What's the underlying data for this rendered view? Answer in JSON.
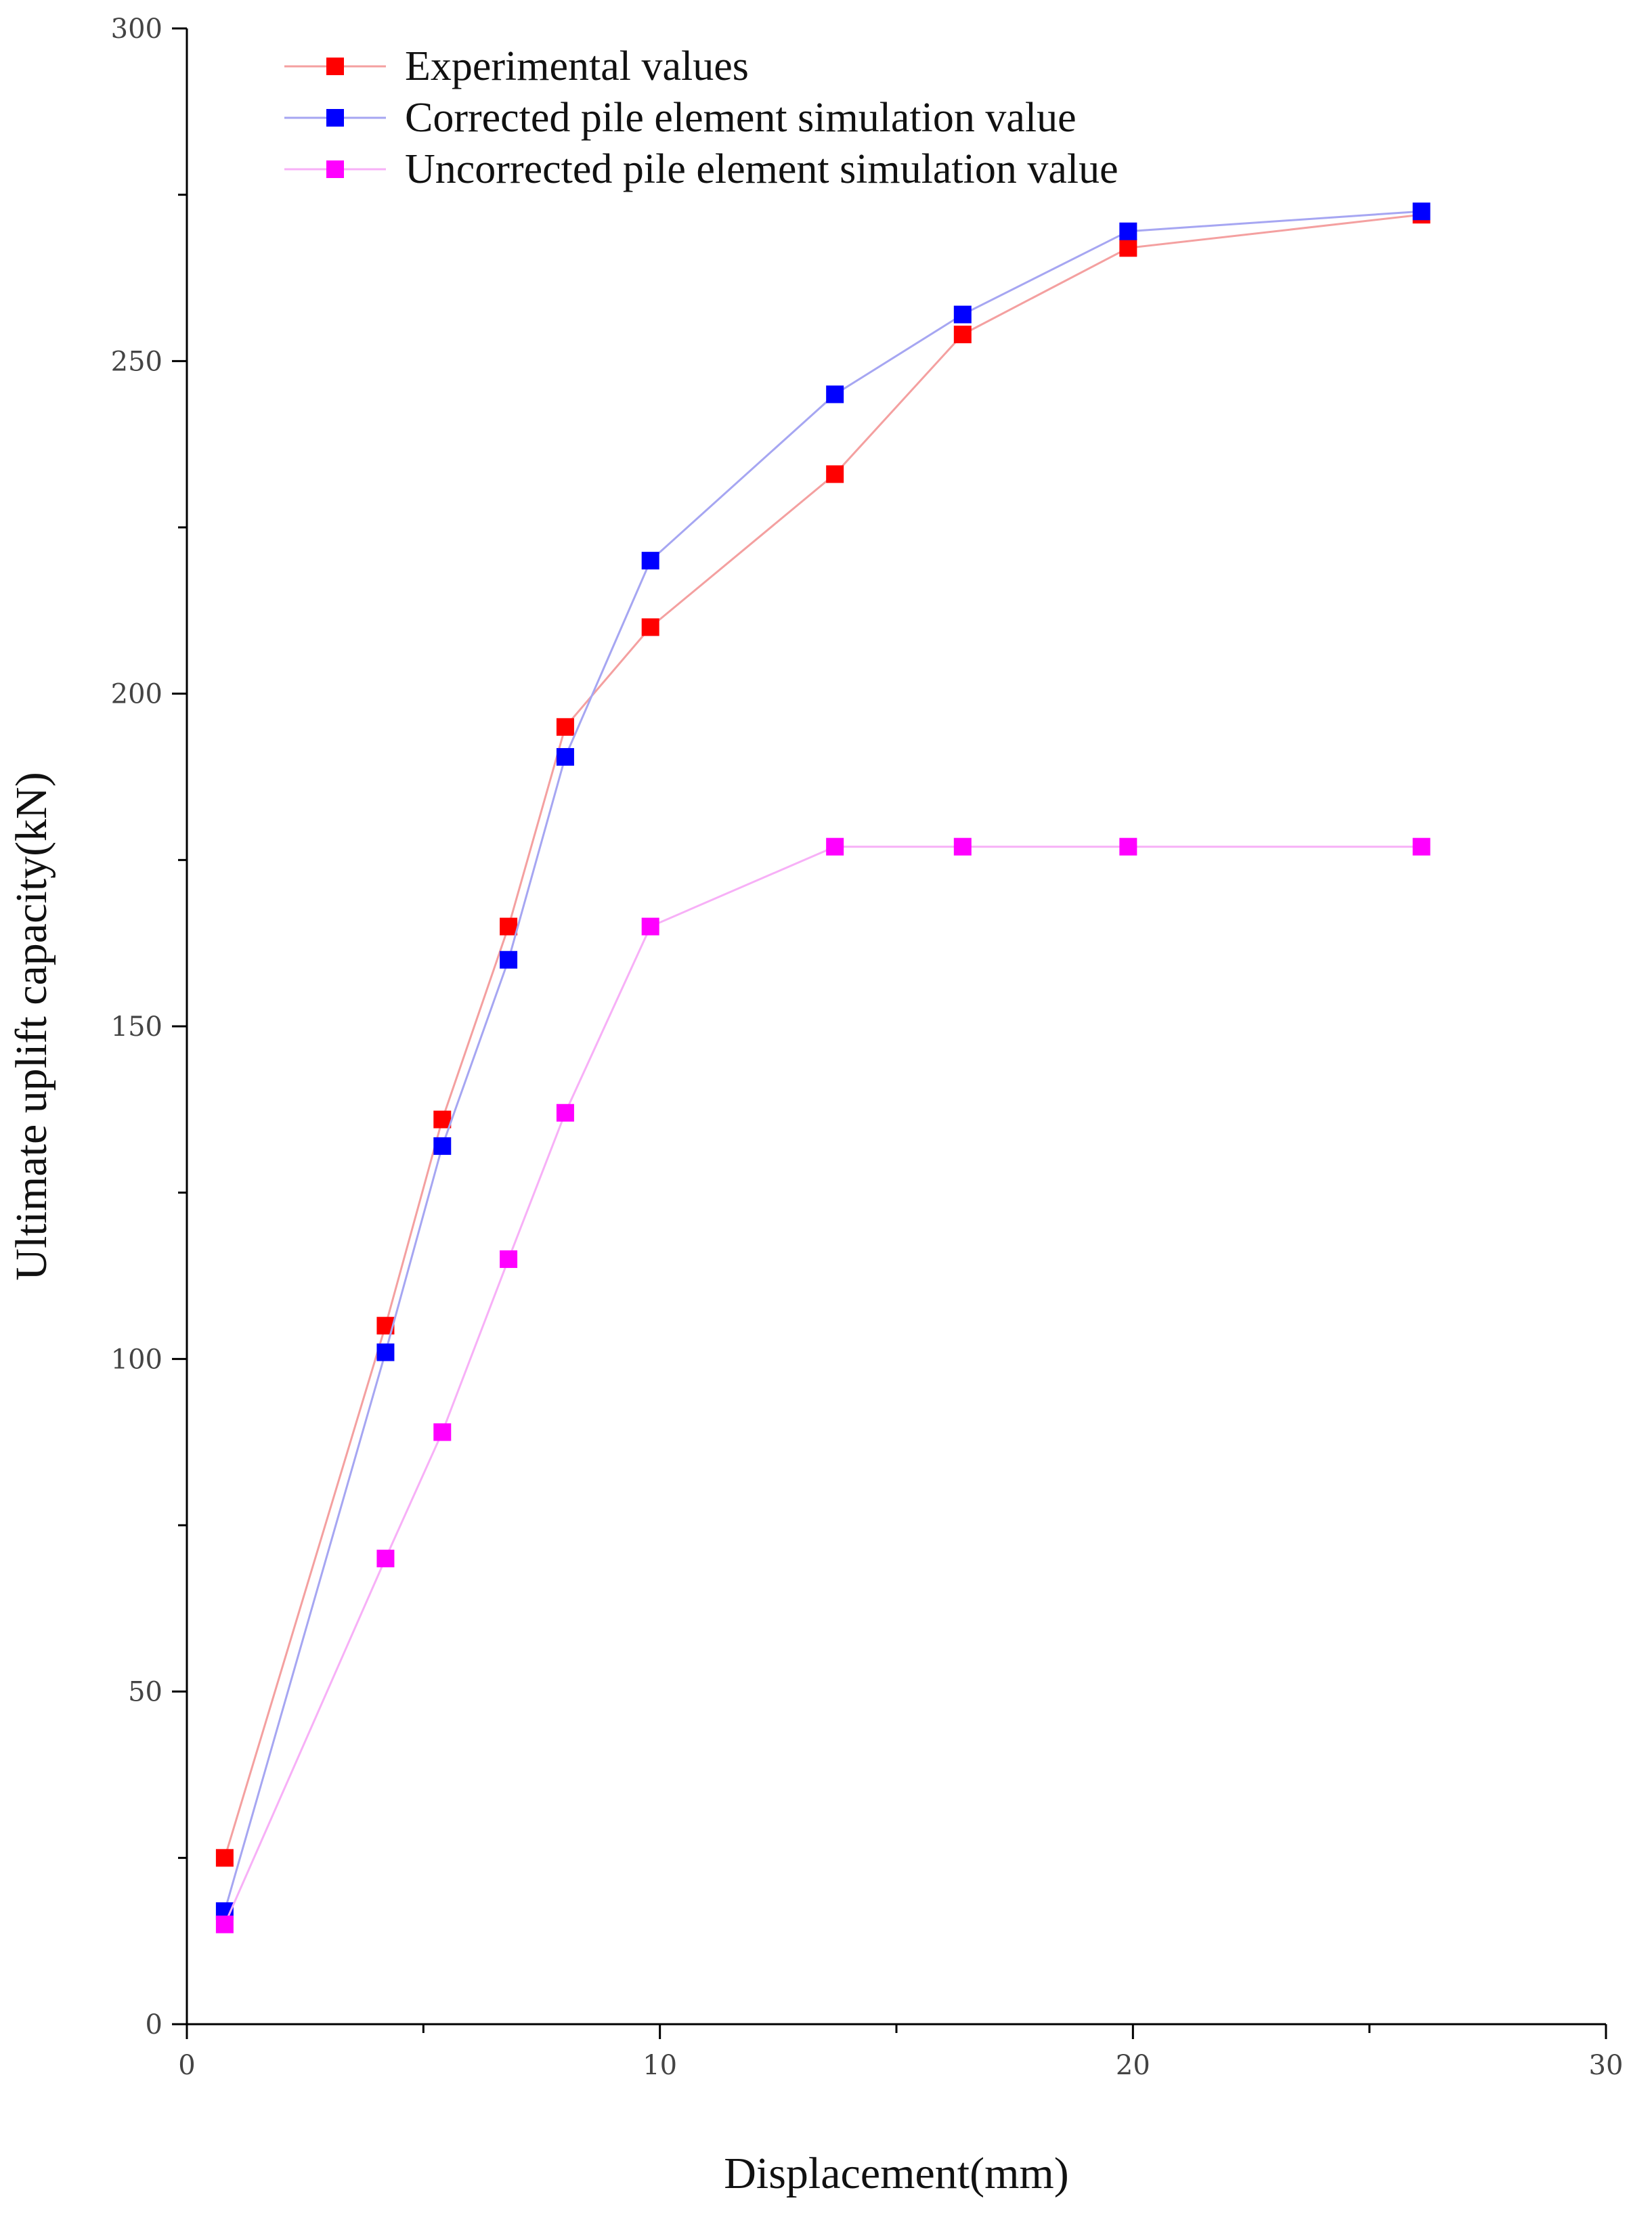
{
  "chart_data": {
    "type": "line",
    "xlabel": "Displacement(mm)",
    "ylabel": "Ultimate uplift capacity(kN)",
    "xlim": [
      0,
      30
    ],
    "ylim": [
      0,
      300
    ],
    "xticks": [
      0,
      10,
      20,
      30
    ],
    "yticks": [
      0,
      50,
      100,
      150,
      200,
      250,
      300
    ],
    "grid": false,
    "legend_position": "top-left",
    "series": [
      {
        "name": "Experimental values",
        "color": "#ff0000",
        "line_color": "#f4a0a0",
        "marker": "square",
        "x": [
          0.8,
          4.2,
          5.4,
          6.8,
          8.0,
          9.8,
          13.7,
          16.4,
          19.9,
          26.1
        ],
        "y": [
          25,
          105,
          136,
          165,
          195,
          210,
          233,
          254,
          267,
          272
        ]
      },
      {
        "name": "Corrected pile element simulation value",
        "color": "#0000ff",
        "line_color": "#a6a6f2",
        "marker": "square",
        "x": [
          0.8,
          4.2,
          5.4,
          6.8,
          8.0,
          9.8,
          13.7,
          16.4,
          19.9,
          26.1
        ],
        "y": [
          17,
          101,
          132,
          160,
          190.5,
          220,
          245,
          257,
          269.5,
          272.5
        ]
      },
      {
        "name": "Uncorrected pile element simulation value",
        "color": "#ff00ff",
        "line_color": "#f7b0f7",
        "marker": "square",
        "x": [
          0.8,
          4.2,
          5.4,
          6.8,
          8.0,
          9.8,
          13.7,
          16.4,
          19.9,
          26.1
        ],
        "y": [
          15,
          70,
          89,
          115,
          137,
          165,
          177,
          177,
          177,
          177
        ]
      }
    ]
  }
}
